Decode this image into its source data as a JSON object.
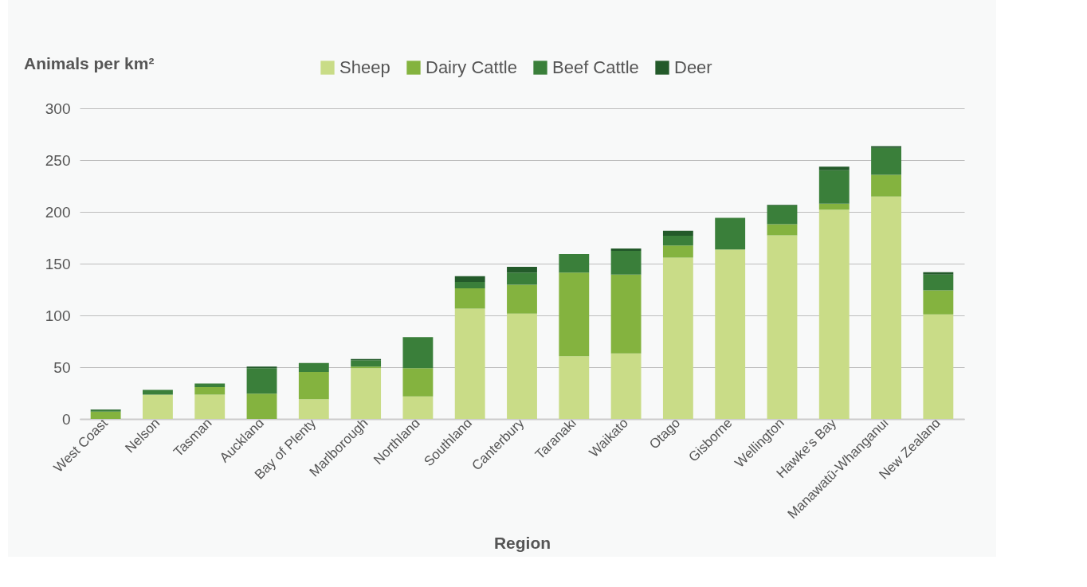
{
  "chart_data": {
    "type": "bar",
    "stacked": true,
    "xlabel": "Region",
    "ylabel": "Animals per km²",
    "categories": [
      "West Coast",
      "Nelson",
      "Tasman",
      "Auckland",
      "Bay of Plenty",
      "Marlborough",
      "Northland",
      "Southland",
      "Canterbury",
      "Taranaki",
      "Waikato",
      "Otago",
      "Gisborne",
      "Wellington",
      "Hawke's Bay",
      "Manawatū-Whanganui",
      "New Zealand"
    ],
    "series": [
      {
        "name": "Sheep",
        "color": "#c9dc87",
        "values": [
          0,
          23.5,
          23.5,
          0,
          19,
          49,
          21.7,
          106.5,
          101.8,
          60.5,
          63.3,
          155.8,
          163.7,
          177.3,
          202.2,
          214.9,
          100.9
        ]
      },
      {
        "name": "Dairy Cattle",
        "color": "#84b33f",
        "values": [
          7.2,
          0,
          7.3,
          24.5,
          26.3,
          1.5,
          27.3,
          19.6,
          27.8,
          80.8,
          76.2,
          11.7,
          0,
          10.7,
          5.6,
          20.8,
          23.3
        ]
      },
      {
        "name": "Beef Cattle",
        "color": "#3a7f3a",
        "values": [
          1.6,
          4.5,
          3.5,
          24.5,
          8.7,
          6.3,
          30,
          6.3,
          11.7,
          18,
          22.8,
          9.5,
          30.6,
          18.2,
          32.3,
          26.1,
          15.3
        ]
      },
      {
        "name": "Deer",
        "color": "#235a2a",
        "values": [
          0.5,
          0,
          0,
          1.5,
          0,
          1,
          0,
          5.4,
          5.6,
          0,
          2.4,
          4.7,
          0,
          0.5,
          3.5,
          1.7,
          2.3
        ]
      }
    ],
    "ylim": [
      0,
      300
    ],
    "yticks": [
      0,
      50,
      100,
      150,
      200,
      250,
      300
    ],
    "grid": "y",
    "legend": "top"
  }
}
